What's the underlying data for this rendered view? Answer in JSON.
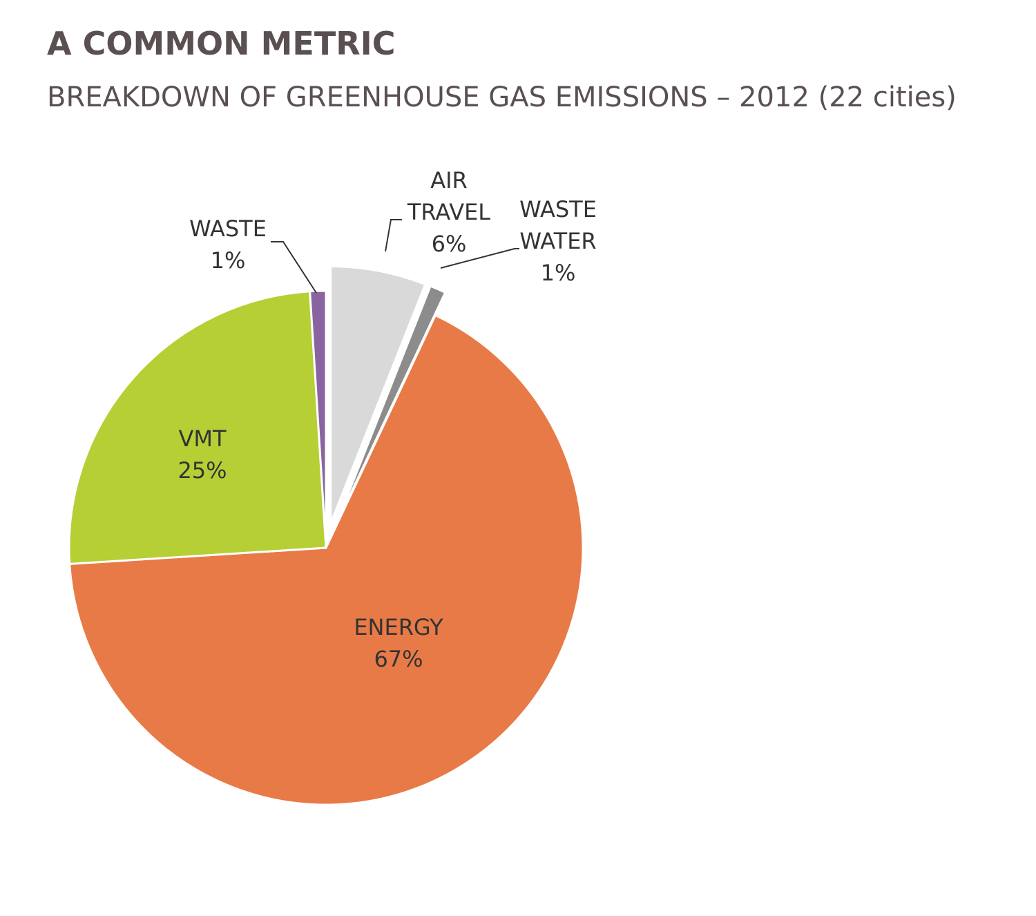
{
  "chart_data": {
    "type": "pie",
    "title": "A COMMON METRIC",
    "subtitle": "BREAKDOWN OF GREENHOUSE GAS EMISSIONS – 2012 (22 cities)",
    "categories": [
      "AIR TRAVEL",
      "WASTE WATER",
      "ENERGY",
      "VMT",
      "WASTE"
    ],
    "values": [
      6,
      1,
      67,
      25,
      1
    ],
    "value_labels": [
      "6%",
      "1%",
      "67%",
      "25%",
      "1%"
    ],
    "colors": [
      "#d9d9d9",
      "#8c8c8c",
      "#e87a47",
      "#b5cf35",
      "#8a64a0"
    ],
    "exploded": [
      true,
      true,
      false,
      false,
      false
    ]
  }
}
